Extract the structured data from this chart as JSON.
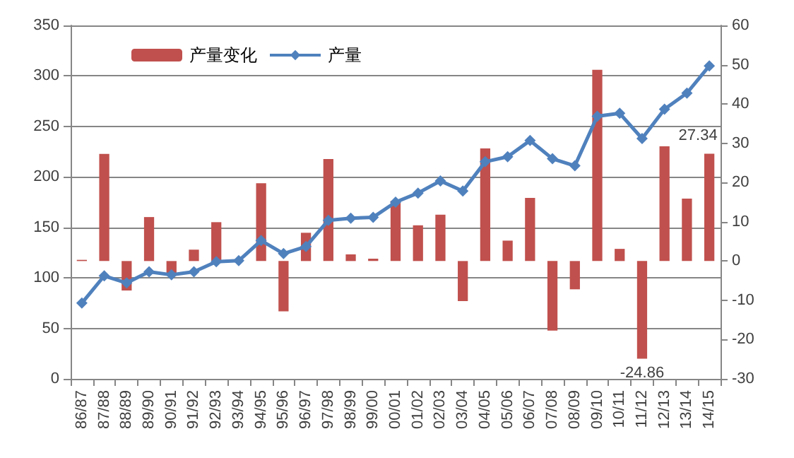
{
  "chart_data": {
    "type": "bar",
    "categories": [
      "86/87",
      "87/88",
      "88/89",
      "89/90",
      "90/91",
      "91/92",
      "92/93",
      "93/94",
      "94/95",
      "95/96",
      "96/97",
      "97/98",
      "98/99",
      "99/00",
      "00/01",
      "01/02",
      "02/03",
      "03/04",
      "04/05",
      "05/06",
      "06/07",
      "07/08",
      "08/09",
      "09/10",
      "10/11",
      "11/12",
      "12/13",
      "13/14",
      "14/15"
    ],
    "series": [
      {
        "name": "产量变化",
        "axis": "y2",
        "color": "#c0504d",
        "values": [
          0.3,
          27.3,
          -7.5,
          11.2,
          -3,
          2.9,
          9.9,
          0,
          19.8,
          -12.8,
          7.2,
          26,
          1.7,
          0.6,
          15.3,
          9.1,
          11.8,
          -10.2,
          28.7,
          5.2,
          16.1,
          -17.7,
          -7.2,
          48.7,
          3.1,
          -24.86,
          29.2,
          15.9,
          27.34
        ],
        "value_labels": [
          null,
          null,
          null,
          null,
          null,
          null,
          null,
          null,
          null,
          null,
          null,
          null,
          null,
          null,
          null,
          null,
          null,
          null,
          null,
          null,
          null,
          null,
          null,
          null,
          null,
          "-24.86",
          null,
          null,
          "27.34"
        ]
      },
      {
        "name": "产量",
        "type": "line",
        "color": "#4f81bd",
        "values": [
          75,
          102,
          95,
          106,
          103,
          106,
          116,
          117,
          137,
          124,
          131,
          157,
          159,
          160,
          175,
          184,
          196,
          186,
          215,
          220,
          236,
          218,
          211,
          260,
          263,
          238,
          267,
          283,
          310
        ]
      }
    ],
    "ylim": [
      0,
      350
    ],
    "yticks": [
      0,
      50,
      100,
      150,
      200,
      250,
      300,
      350
    ],
    "y2lim": [
      -30,
      60
    ],
    "y2ticks": [
      -30,
      -20,
      -10,
      0,
      10,
      20,
      30,
      40,
      50,
      60
    ],
    "grid": "y",
    "legend": "top left",
    "marker": "diamond",
    "line_style": "solid"
  }
}
